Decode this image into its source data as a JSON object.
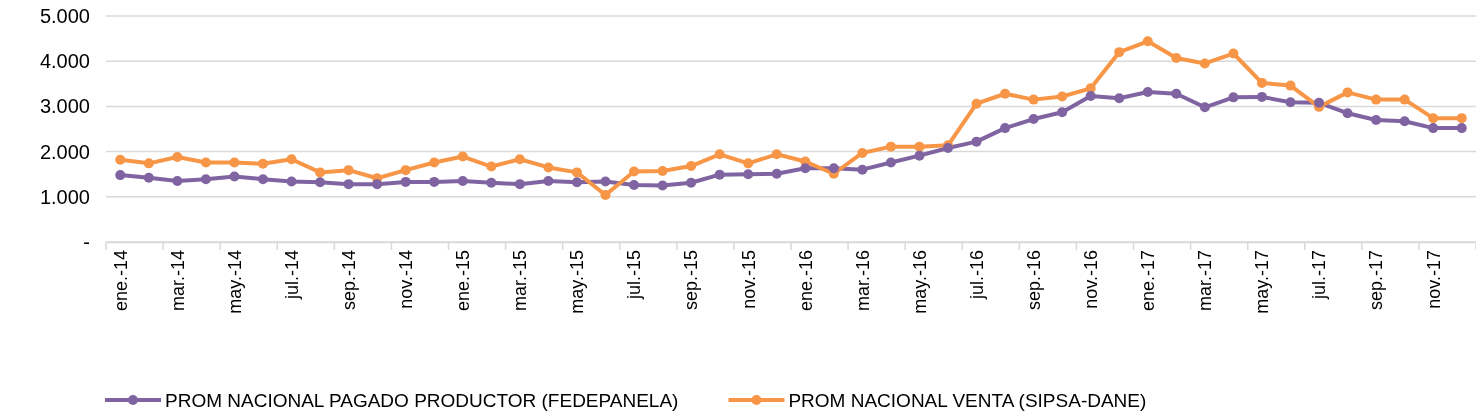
{
  "chart_data": {
    "type": "line",
    "categories": [
      "ene.-14",
      null,
      "mar.-14",
      null,
      "may.-14",
      null,
      "jul.-14",
      null,
      "sep.-14",
      null,
      "nov.-14",
      null,
      "ene.-15",
      null,
      "mar.-15",
      null,
      "may.-15",
      null,
      "jul.-15",
      null,
      "sep.-15",
      null,
      "nov.-15",
      null,
      "ene.-16",
      null,
      "mar.-16",
      null,
      "may.-16",
      null,
      "jul.-16",
      null,
      "sep.-16",
      null,
      "nov.-16",
      null,
      "ene.-17",
      null,
      "mar.-17",
      null,
      "may.-17",
      null,
      "jul.-17",
      null,
      "sep.-17",
      null,
      "nov.-17",
      null
    ],
    "series": [
      {
        "name": "PROM NACIONAL PAGADO PRODUCTOR (FEDEPANELA)",
        "color": "#8064a2",
        "values": [
          1480,
          1420,
          1350,
          1390,
          1450,
          1390,
          1340,
          1320,
          1280,
          1280,
          1330,
          1330,
          1350,
          1310,
          1280,
          1350,
          1320,
          1340,
          1260,
          1250,
          1310,
          1490,
          1500,
          1510,
          1630,
          1630,
          1600,
          1760,
          1910,
          2080,
          2220,
          2520,
          2720,
          2870,
          3230,
          3180,
          3320,
          3280,
          2980,
          3200,
          3210,
          3090,
          3080,
          2850,
          2700,
          2670,
          2520,
          2520
        ]
      },
      {
        "name": "PROM NACIONAL VENTA (SIPSA-DANE)",
        "color": "#f79646",
        "values": [
          1820,
          1740,
          1880,
          1760,
          1760,
          1730,
          1830,
          1540,
          1590,
          1410,
          1590,
          1760,
          1890,
          1670,
          1830,
          1650,
          1540,
          1040,
          1560,
          1570,
          1680,
          1940,
          1740,
          1940,
          1780,
          1510,
          1970,
          2110,
          2110,
          2140,
          3060,
          3280,
          3150,
          3220,
          3400,
          4200,
          4440,
          4070,
          3950,
          4170,
          3520,
          3460,
          2990,
          3310,
          3150,
          3150,
          2740,
          2740
        ]
      }
    ],
    "ylim": [
      0,
      5000
    ],
    "yticks": [
      {
        "value": 0,
        "label": "-"
      },
      {
        "value": 1000,
        "label": "1.000"
      },
      {
        "value": 2000,
        "label": "2.000"
      },
      {
        "value": 3000,
        "label": "3.000"
      },
      {
        "value": 4000,
        "label": "4.000"
      },
      {
        "value": 5000,
        "label": "5.000"
      }
    ],
    "grid": "y",
    "legend": "bottom",
    "marker": "circle",
    "line_style": "solid"
  }
}
